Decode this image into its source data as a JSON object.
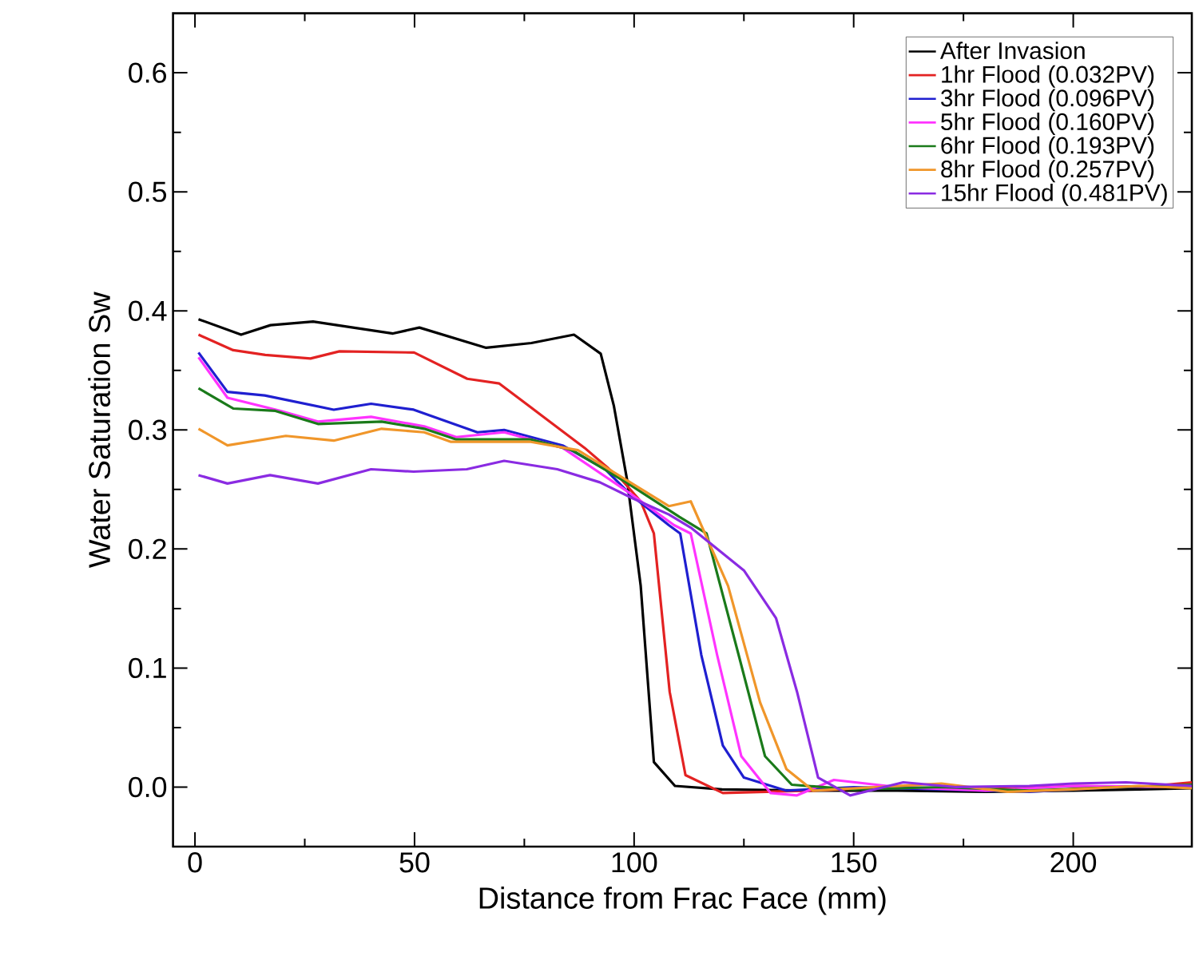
{
  "chart_data": {
    "type": "line",
    "xlabel": "Distance from Frac Face (mm)",
    "ylabel": "Water Saturation Sw",
    "xlim": [
      -5,
      227
    ],
    "ylim": [
      -0.05,
      0.65
    ],
    "xticks": [
      0,
      50,
      100,
      150,
      200
    ],
    "yticks": [
      {
        "value": 0,
        "label": "0.0"
      },
      0.1,
      0.2,
      0.3,
      0.4,
      0.5,
      0.6
    ],
    "legend": "top right",
    "series": [
      {
        "name": "After Invasion",
        "color": "#000000",
        "x": [
          0.8,
          10.5,
          17.2,
          26.9,
          45.1,
          51.1,
          66.3,
          76.6,
          86.3,
          92.4,
          95.4,
          98.4,
          101.5,
          104.5,
          109.3,
          120,
          140,
          160,
          180,
          200,
          215,
          227
        ],
        "values": [
          0.393,
          0.38,
          0.388,
          0.391,
          0.381,
          0.386,
          0.369,
          0.373,
          0.38,
          0.364,
          0.32,
          0.258,
          0.169,
          0.021,
          0.001,
          -0.002,
          -0.003,
          -0.003,
          -0.004,
          -0.003,
          -0.002,
          -0.001
        ]
      },
      {
        "name": "1hr Flood (0.032PV)",
        "color": "#e32222",
        "x": [
          0.8,
          8.7,
          16,
          26.3,
          32.9,
          49.9,
          62,
          69.3,
          79,
          88.7,
          97.2,
          101.5,
          104.5,
          108.1,
          111.7,
          120.2,
          140,
          160,
          180,
          200,
          215,
          227
        ],
        "values": [
          0.38,
          0.367,
          0.363,
          0.36,
          0.366,
          0.365,
          0.343,
          0.339,
          0.312,
          0.285,
          0.258,
          0.24,
          0.213,
          0.08,
          0.01,
          -0.005,
          -0.003,
          0.0,
          -0.002,
          0.001,
          0.0,
          0.004
        ]
      },
      {
        "name": "3hr Flood (0.096PV)",
        "color": "#1f1fd0",
        "x": [
          0.8,
          7.4,
          15.9,
          31.6,
          40.1,
          49.8,
          64.3,
          70.4,
          83.7,
          93.4,
          99.4,
          107.9,
          110.5,
          115.3,
          120.2,
          125,
          134.7,
          150,
          170,
          190,
          210,
          227
        ],
        "values": [
          0.365,
          0.332,
          0.329,
          0.317,
          0.322,
          0.317,
          0.298,
          0.3,
          0.287,
          0.267,
          0.245,
          0.22,
          0.213,
          0.111,
          0.035,
          0.008,
          -0.003,
          0.0,
          -0.002,
          -0.004,
          0.0,
          0.001
        ]
      },
      {
        "name": "5hr Flood (0.160PV)",
        "color": "#ff33ff",
        "x": [
          0.8,
          7.4,
          19.5,
          28,
          40.1,
          52.2,
          59.5,
          70.4,
          83.7,
          98.2,
          109.1,
          112.9,
          118.9,
          124.4,
          131.1,
          137,
          145.5,
          160,
          180,
          200,
          227
        ],
        "values": [
          0.361,
          0.327,
          0.316,
          0.307,
          0.311,
          0.303,
          0.294,
          0.298,
          0.285,
          0.249,
          0.22,
          0.213,
          0.111,
          0.026,
          -0.005,
          -0.007,
          0.006,
          0.0,
          -0.003,
          0.001,
          0.0
        ]
      },
      {
        "name": "6hr Flood (0.193PV)",
        "color": "#1a7a1a",
        "x": [
          0.8,
          8.7,
          18.3,
          28,
          42.5,
          52.2,
          59.5,
          76.5,
          85.9,
          98.2,
          110.3,
          116.5,
          123.8,
          129.8,
          135.9,
          150,
          170,
          190,
          210,
          227
        ],
        "values": [
          0.335,
          0.318,
          0.316,
          0.305,
          0.307,
          0.301,
          0.292,
          0.292,
          0.283,
          0.256,
          0.227,
          0.213,
          0.111,
          0.026,
          0.002,
          -0.002,
          0.0,
          -0.003,
          0.0,
          0.002
        ]
      },
      {
        "name": "8hr Flood (0.257PV)",
        "color": "#f0962a",
        "x": [
          0.8,
          7.4,
          20.7,
          31.6,
          42.5,
          52.2,
          58.3,
          76.5,
          87.2,
          98.2,
          107.9,
          112.9,
          121.4,
          128.7,
          134.7,
          140.8,
          155,
          170,
          185,
          200,
          215,
          227
        ],
        "values": [
          0.301,
          0.287,
          0.295,
          0.291,
          0.301,
          0.298,
          0.29,
          0.29,
          0.283,
          0.258,
          0.236,
          0.24,
          0.169,
          0.071,
          0.015,
          -0.003,
          0.0,
          0.003,
          -0.004,
          -0.002,
          0.001,
          -0.001
        ]
      },
      {
        "name": "15hr Flood (0.481PV)",
        "color": "#8a2be2",
        "x": [
          0.8,
          7.4,
          17.1,
          28,
          40.1,
          49.8,
          61.9,
          70.4,
          82.5,
          92.2,
          99.4,
          107.9,
          112.9,
          125,
          132.3,
          137.1,
          141.9,
          149.2,
          161.3,
          173.4,
          190,
          200,
          212,
          227
        ],
        "values": [
          0.262,
          0.255,
          0.262,
          0.255,
          0.267,
          0.265,
          0.267,
          0.274,
          0.267,
          0.256,
          0.243,
          0.229,
          0.218,
          0.182,
          0.142,
          0.08,
          0.008,
          -0.007,
          0.004,
          0.0,
          0.001,
          0.003,
          0.004,
          0.001
        ]
      }
    ]
  }
}
